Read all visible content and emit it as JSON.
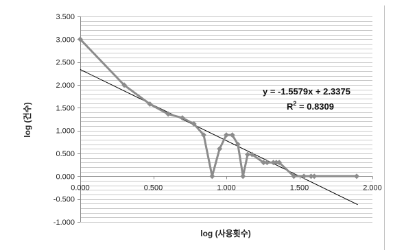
{
  "chart_data": {
    "type": "scatter",
    "xlabel": "log (사용횟수)",
    "ylabel": "log (건수)",
    "xlim": [
      0,
      2
    ],
    "ylim": [
      -1,
      3.5
    ],
    "x_ticks": [
      "0.000",
      "0.500",
      "1.000",
      "1.500",
      "2.000"
    ],
    "y_ticks": [
      "3.500",
      "3.000",
      "2.500",
      "2.000",
      "1.500",
      "1.000",
      "0.500",
      "0.000",
      "-0.500",
      "-1.000"
    ],
    "grid": true,
    "series": [
      {
        "color": "#8c8c8c",
        "x": [
          0.0,
          0.301,
          0.477,
          0.602,
          0.699,
          0.778,
          0.845,
          0.903,
          0.954,
          1.0,
          1.041,
          1.079,
          1.114,
          1.146,
          1.176,
          1.255,
          1.279,
          1.322,
          1.342,
          1.362,
          1.462,
          1.531,
          1.58,
          1.602,
          1.892
        ],
        "y": [
          3.0,
          1.996,
          1.58,
          1.362,
          1.279,
          1.146,
          0.903,
          0.0,
          0.602,
          0.903,
          0.903,
          0.699,
          0.0,
          0.477,
          0.477,
          0.301,
          0.301,
          0.301,
          0.301,
          0.301,
          0.0,
          0.0,
          0.0,
          0.0,
          0.0
        ]
      }
    ],
    "trendline": {
      "slope": -1.5579,
      "intercept": 2.3375,
      "x_range": [
        0,
        1.9
      ],
      "color": "#000000"
    },
    "annotations": {
      "equation": "y = -1.5579x + 2.3375",
      "r2_prefix": "R",
      "r2_sup": "2",
      "r2_value": " = 0.8309"
    }
  }
}
